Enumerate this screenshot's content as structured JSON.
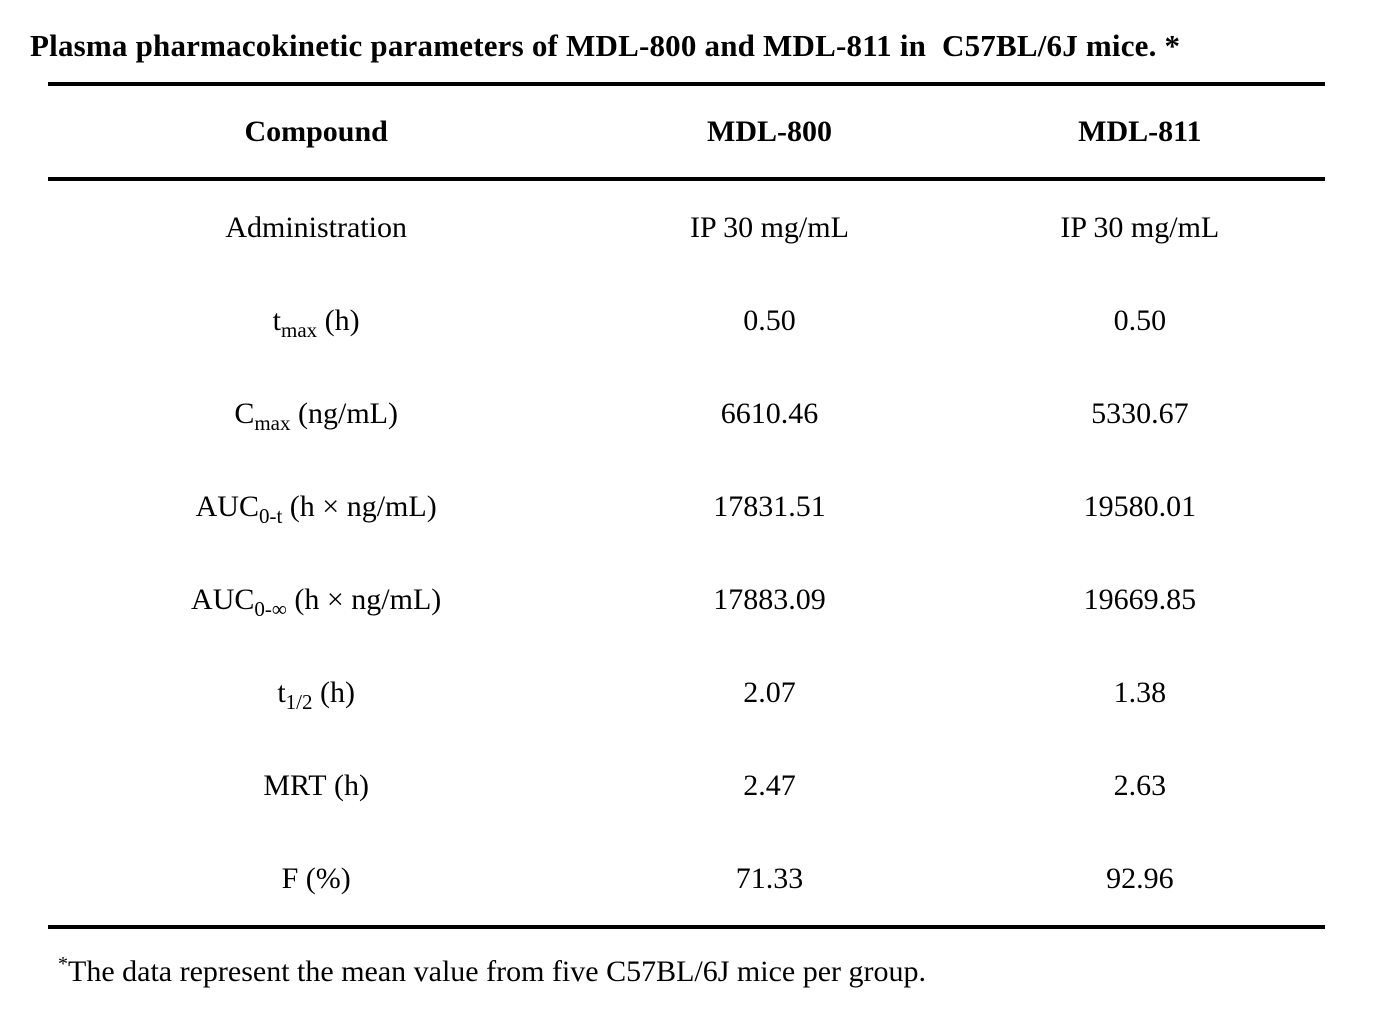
{
  "page": {
    "background_color": "#ffffff",
    "text_color": "#000000"
  },
  "title": "Plasma pharmacokinetic parameters of MDL-800 and MDL-811 in  C57BL/6J mice. *",
  "table": {
    "header": {
      "compound": "Compound",
      "mdl800": "MDL-800",
      "mdl811": "MDL-811"
    },
    "rows": [
      {
        "param": {
          "base": "Administration",
          "sub": "",
          "rest": ""
        },
        "mdl800": "IP 30 mg/mL",
        "mdl811": "IP 30 mg/mL"
      },
      {
        "param": {
          "base": "t",
          "sub": "max",
          "rest": " (h)"
        },
        "mdl800": "0.50",
        "mdl811": "0.50"
      },
      {
        "param": {
          "base": "C",
          "sub": "max",
          "rest": " (ng/mL)"
        },
        "mdl800": "6610.46",
        "mdl811": "5330.67"
      },
      {
        "param": {
          "base": "AUC",
          "sub": "0-t",
          "rest": " (h × ng/mL)"
        },
        "mdl800": "17831.51",
        "mdl811": "19580.01"
      },
      {
        "param": {
          "base": "AUC",
          "sub": "0-∞",
          "rest": " (h × ng/mL)"
        },
        "mdl800": "17883.09",
        "mdl811": "19669.85"
      },
      {
        "param": {
          "base": "t",
          "sub": "1/2",
          "rest": " (h)"
        },
        "mdl800": "2.07",
        "mdl811": "1.38"
      },
      {
        "param": {
          "base": "MRT",
          "sub": "",
          "rest": " (h)"
        },
        "mdl800": "2.47",
        "mdl811": "2.63"
      },
      {
        "param": {
          "base": "F",
          "sub": "",
          "rest": " (%)"
        },
        "mdl800": "71.33",
        "mdl811": "92.96"
      }
    ]
  },
  "footnote": {
    "marker": "*",
    "text": "The data represent the mean value from five C57BL/6J mice per group."
  }
}
